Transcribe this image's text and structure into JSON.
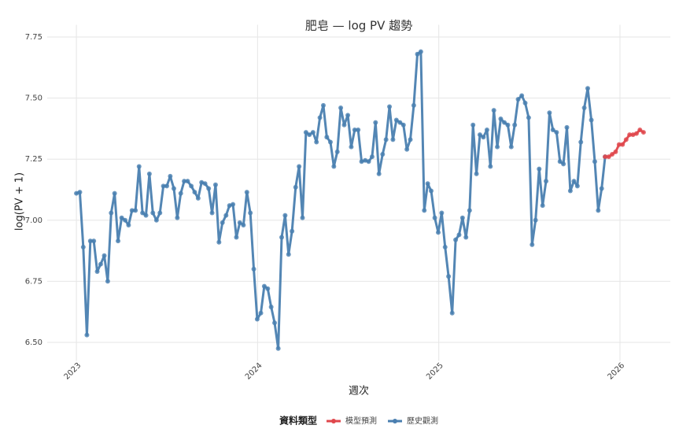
{
  "chart_data": {
    "type": "line",
    "title": "肥皂 — log PV 趨勢",
    "x_label": "週次",
    "y_label": "log(PV + 1)",
    "legend_title": "資料類型",
    "legend": "bottom",
    "grid": true,
    "xlim": [
      2022.839,
      2026.278
    ],
    "xticks": [
      2023,
      2024,
      2025,
      2026
    ],
    "ylim": [
      6.45,
      7.8
    ],
    "yticks": [
      {
        "value": 6.5,
        "label": "6.50"
      },
      {
        "value": 6.75,
        "label": "6.75"
      },
      {
        "value": 7,
        "label": "7.00"
      },
      {
        "value": 7.25,
        "label": "7.25"
      },
      {
        "value": 7.5,
        "label": "7.50"
      },
      {
        "value": 7.75,
        "label": "7.75"
      }
    ],
    "series": [
      {
        "name": "模型預測",
        "color": "#e0474c",
        "x": [
          2025.918,
          2025.938,
          2025.957,
          2025.976,
          2025.995,
          2026.014,
          2026.034,
          2026.053,
          2026.072,
          2026.091,
          2026.11,
          2026.13
        ],
        "values": [
          7.26,
          7.26,
          7.27,
          7.28,
          7.31,
          7.31,
          7.33,
          7.35,
          7.35,
          7.355,
          7.37,
          7.36
        ]
      },
      {
        "name": "歷史觀測",
        "color": "#4a7fb0",
        "x": [
          2023.0,
          2023.019,
          2023.038,
          2023.058,
          2023.077,
          2023.096,
          2023.115,
          2023.134,
          2023.154,
          2023.173,
          2023.192,
          2023.211,
          2023.23,
          2023.25,
          2023.269,
          2023.288,
          2023.307,
          2023.326,
          2023.346,
          2023.365,
          2023.384,
          2023.403,
          2023.422,
          2023.442,
          2023.461,
          2023.48,
          2023.499,
          2023.518,
          2023.538,
          2023.557,
          2023.576,
          2023.595,
          2023.614,
          2023.634,
          2023.653,
          2023.672,
          2023.691,
          2023.71,
          2023.73,
          2023.749,
          2023.768,
          2023.787,
          2023.806,
          2023.826,
          2023.845,
          2023.864,
          2023.883,
          2023.902,
          2023.922,
          2023.941,
          2023.96,
          2023.979,
          2023.998,
          2024.018,
          2024.037,
          2024.056,
          2024.075,
          2024.094,
          2024.114,
          2024.133,
          2024.152,
          2024.171,
          2024.19,
          2024.21,
          2024.229,
          2024.248,
          2024.267,
          2024.286,
          2024.306,
          2024.325,
          2024.344,
          2024.363,
          2024.382,
          2024.402,
          2024.421,
          2024.44,
          2024.459,
          2024.478,
          2024.498,
          2024.517,
          2024.536,
          2024.555,
          2024.574,
          2024.594,
          2024.613,
          2024.632,
          2024.651,
          2024.67,
          2024.69,
          2024.709,
          2024.728,
          2024.747,
          2024.766,
          2024.786,
          2024.805,
          2024.824,
          2024.843,
          2024.862,
          2024.882,
          2024.901,
          2024.92,
          2024.939,
          2024.958,
          2024.978,
          2024.997,
          2025.016,
          2025.035,
          2025.054,
          2025.074,
          2025.093,
          2025.112,
          2025.131,
          2025.15,
          2025.17,
          2025.189,
          2025.208,
          2025.227,
          2025.246,
          2025.266,
          2025.285,
          2025.304,
          2025.323,
          2025.342,
          2025.362,
          2025.381,
          2025.4,
          2025.419,
          2025.438,
          2025.458,
          2025.477,
          2025.496,
          2025.515,
          2025.534,
          2025.554,
          2025.573,
          2025.592,
          2025.611,
          2025.63,
          2025.65,
          2025.669,
          2025.688,
          2025.707,
          2025.726,
          2025.746,
          2025.765,
          2025.784,
          2025.803,
          2025.822,
          2025.842,
          2025.861,
          2025.88,
          2025.899,
          2025.918
        ],
        "values": [
          7.11,
          7.115,
          6.89,
          6.53,
          6.915,
          6.915,
          6.79,
          6.82,
          6.855,
          6.75,
          7.03,
          7.11,
          6.915,
          7.01,
          7.0,
          6.98,
          7.04,
          7.04,
          7.22,
          7.03,
          7.02,
          7.19,
          7.03,
          7.0,
          7.03,
          7.14,
          7.14,
          7.18,
          7.13,
          7.01,
          7.11,
          7.16,
          7.16,
          7.14,
          7.115,
          7.09,
          7.155,
          7.15,
          7.13,
          7.03,
          7.145,
          6.91,
          6.99,
          7.02,
          7.06,
          7.065,
          6.93,
          6.99,
          6.98,
          7.115,
          7.03,
          6.8,
          6.595,
          6.62,
          6.73,
          6.72,
          6.645,
          6.58,
          6.475,
          6.93,
          7.02,
          6.86,
          6.955,
          7.135,
          7.22,
          7.01,
          7.36,
          7.35,
          7.36,
          7.32,
          7.42,
          7.47,
          7.34,
          7.32,
          7.22,
          7.28,
          7.46,
          7.39,
          7.43,
          7.3,
          7.37,
          7.37,
          7.24,
          7.245,
          7.24,
          7.26,
          7.4,
          7.19,
          7.27,
          7.33,
          7.465,
          7.33,
          7.41,
          7.4,
          7.39,
          7.29,
          7.33,
          7.47,
          7.68,
          7.69,
          7.04,
          7.15,
          7.12,
          7.01,
          6.95,
          7.03,
          6.89,
          6.77,
          6.62,
          6.92,
          6.94,
          7.01,
          6.93,
          7.04,
          7.39,
          7.19,
          7.35,
          7.34,
          7.37,
          7.22,
          7.45,
          7.3,
          7.415,
          7.4,
          7.39,
          7.3,
          7.39,
          7.495,
          7.51,
          7.48,
          7.42,
          6.9,
          7.0,
          7.21,
          7.06,
          7.16,
          7.44,
          7.37,
          7.36,
          7.24,
          7.23,
          7.38,
          7.12,
          7.16,
          7.14,
          7.32,
          7.46,
          7.54,
          7.41,
          7.24,
          7.04,
          7.13,
          7.26
        ]
      }
    ]
  }
}
